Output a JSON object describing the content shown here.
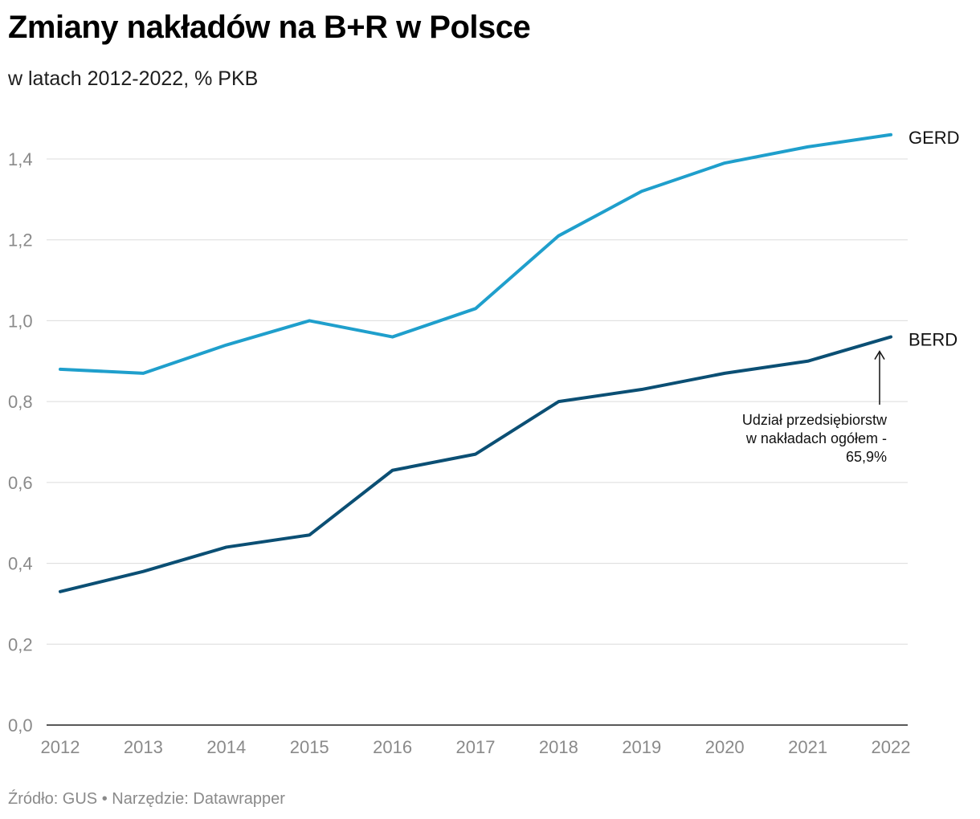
{
  "header": {
    "title": "Zmiany nakładów na B+R w Polsce",
    "subtitle": "w latach 2012-2022, % PKB"
  },
  "footer": {
    "source": "Źródło: GUS • Narzędzie: Datawrapper"
  },
  "chart_data": {
    "type": "line",
    "x": [
      "2012",
      "2013",
      "2014",
      "2015",
      "2016",
      "2017",
      "2018",
      "2019",
      "2020",
      "2021",
      "2022"
    ],
    "series": [
      {
        "name": "GERD",
        "color": "#1f9fcc",
        "values": [
          0.88,
          0.87,
          0.94,
          1.0,
          0.96,
          1.03,
          1.21,
          1.32,
          1.39,
          1.43,
          1.46
        ]
      },
      {
        "name": "BERD",
        "color": "#0b4f74",
        "values": [
          0.33,
          0.38,
          0.44,
          0.47,
          0.63,
          0.67,
          0.8,
          0.83,
          0.87,
          0.9,
          0.96
        ]
      }
    ],
    "ylim": [
      0,
      1.4
    ],
    "yticks": [
      "0,0",
      "0,2",
      "0,4",
      "0,6",
      "0,8",
      "1,0",
      "1,2",
      "1,4"
    ],
    "ytick_values": [
      0,
      0.2,
      0.4,
      0.6,
      0.8,
      1.0,
      1.2,
      1.4
    ],
    "grid": true,
    "legend": "inline-right",
    "annotation": {
      "lines": [
        "Udział przedsiębiorstw",
        "w nakładach ogółem -",
        "65,9%"
      ],
      "target_series": "BERD",
      "target_x": "2022"
    }
  }
}
